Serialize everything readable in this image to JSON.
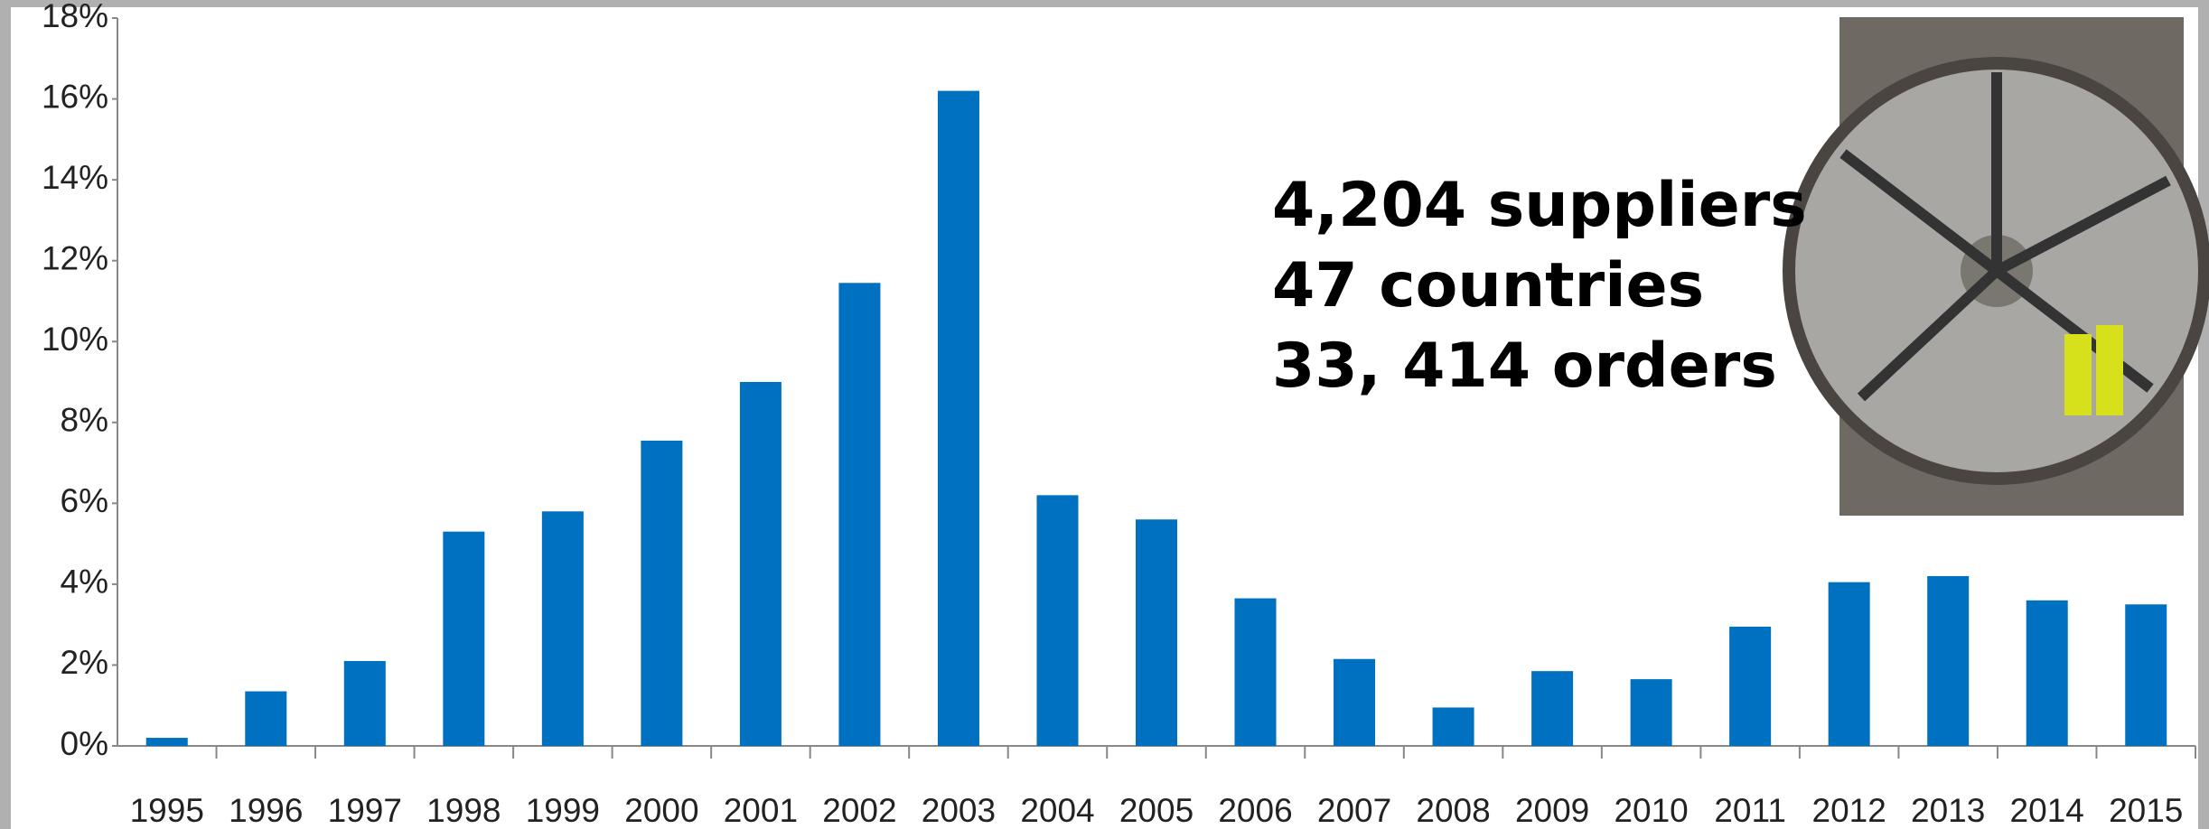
{
  "chart_data": {
    "type": "bar",
    "categories": [
      "1995",
      "1996",
      "1997",
      "1998",
      "1999",
      "2000",
      "2001",
      "2002",
      "2003",
      "2004",
      "2005",
      "2006",
      "2007",
      "2008",
      "2009",
      "2010",
      "2011",
      "2012",
      "2013",
      "2014",
      "2015"
    ],
    "values": [
      0.2,
      1.35,
      2.1,
      5.3,
      5.8,
      7.55,
      9.0,
      11.45,
      16.2,
      6.2,
      5.6,
      3.65,
      2.15,
      0.95,
      1.85,
      1.65,
      2.95,
      4.05,
      4.2,
      3.6,
      3.5
    ],
    "color": "#0070c0",
    "ylim": [
      0,
      18
    ],
    "yticks": [
      {
        "value": 0,
        "label": "0%"
      },
      {
        "value": 2,
        "label": "2%"
      },
      {
        "value": 4,
        "label": "4%"
      },
      {
        "value": 6,
        "label": "6%"
      },
      {
        "value": 8,
        "label": "8%"
      },
      {
        "value": 10,
        "label": "10%"
      },
      {
        "value": 12,
        "label": "12%"
      },
      {
        "value": 14,
        "label": "14%"
      },
      {
        "value": 16,
        "label": "16%"
      },
      {
        "value": 18,
        "label": "18%"
      }
    ],
    "grid": false,
    "annotations": [
      "4,204 suppliers",
      "47 countries",
      "33, 414 orders"
    ]
  }
}
